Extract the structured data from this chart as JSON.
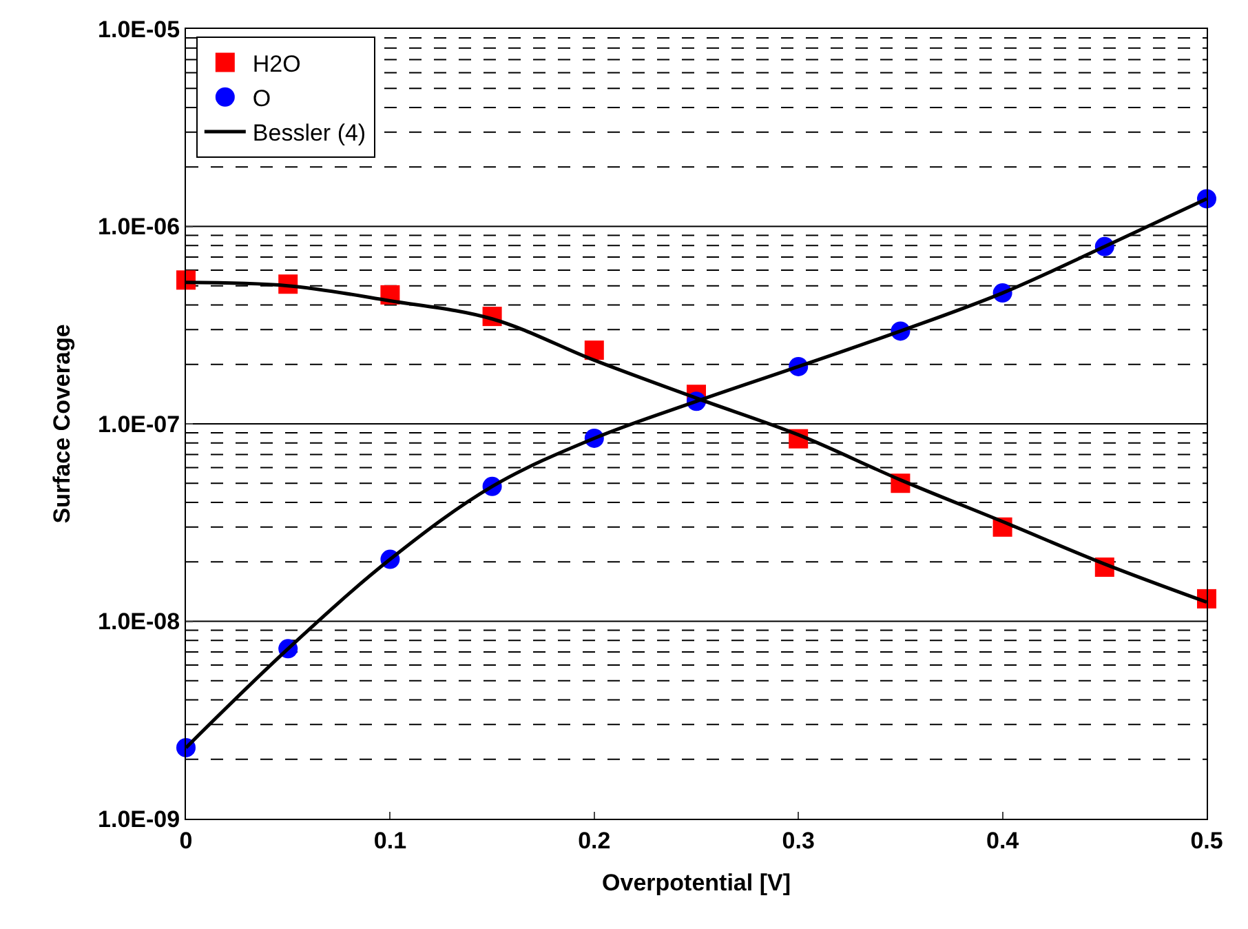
{
  "chart_data": {
    "type": "scatter",
    "xlabel": "Overpotential [V]",
    "ylabel": "Surface Coverage",
    "log": "y",
    "grid": "y",
    "legend": "top left",
    "x": [
      0,
      0.05,
      0.1,
      0.15,
      0.2,
      0.25,
      0.3,
      0.35,
      0.4,
      0.45,
      0.5
    ],
    "xlim": [
      0,
      0.5
    ],
    "xticks": [
      0,
      0.1,
      0.2,
      0.3,
      0.4,
      0.5
    ],
    "ylim": [
      1e-09,
      1e-05
    ],
    "yticks": [
      {
        "value": 1e-09,
        "label": "1.0E-09"
      },
      {
        "value": 2e-09,
        "label": null
      },
      {
        "value": 3e-09,
        "label": null
      },
      {
        "value": 4e-09,
        "label": null
      },
      {
        "value": 5e-09,
        "label": null
      },
      {
        "value": 6e-09,
        "label": null
      },
      {
        "value": 7e-09,
        "label": null
      },
      {
        "value": 8e-09,
        "label": null
      },
      {
        "value": 9e-09,
        "label": null
      },
      {
        "value": 1e-08,
        "label": "1.0E-08"
      },
      {
        "value": 2e-08,
        "label": null
      },
      {
        "value": 3e-08,
        "label": null
      },
      {
        "value": 4e-08,
        "label": null
      },
      {
        "value": 5e-08,
        "label": null
      },
      {
        "value": 6e-08,
        "label": null
      },
      {
        "value": 7e-08,
        "label": null
      },
      {
        "value": 8e-08,
        "label": null
      },
      {
        "value": 9e-08,
        "label": null
      },
      {
        "value": 1e-07,
        "label": "1.0E-07"
      },
      {
        "value": 2e-07,
        "label": null
      },
      {
        "value": 3e-07,
        "label": null
      },
      {
        "value": 4e-07,
        "label": null
      },
      {
        "value": 5e-07,
        "label": null
      },
      {
        "value": 6e-07,
        "label": null
      },
      {
        "value": 7e-07,
        "label": null
      },
      {
        "value": 8e-07,
        "label": null
      },
      {
        "value": 9e-07,
        "label": null
      },
      {
        "value": 1e-06,
        "label": "1.0E-06"
      },
      {
        "value": 2e-06,
        "label": null
      },
      {
        "value": 3e-06,
        "label": null
      },
      {
        "value": 4e-06,
        "label": null
      },
      {
        "value": 5e-06,
        "label": null
      },
      {
        "value": 6e-06,
        "label": null
      },
      {
        "value": 7e-06,
        "label": null
      },
      {
        "value": 8e-06,
        "label": null
      },
      {
        "value": 9e-06,
        "label": null
      },
      {
        "value": 1e-05,
        "label": "1.0E-05"
      }
    ],
    "series": [
      {
        "name": "H2O",
        "marker": "square",
        "color": "#ff0000",
        "values": [
          5.35e-07,
          5.1e-07,
          4.5e-07,
          3.5e-07,
          2.36e-07,
          1.41e-07,
          8.4e-08,
          5e-08,
          3e-08,
          1.88e-08,
          1.3e-08
        ]
      },
      {
        "name": "O",
        "marker": "circle",
        "color": "#0000ff",
        "values": [
          2.29e-09,
          7.26e-09,
          2.06e-08,
          4.82e-08,
          8.45e-08,
          1.3e-07,
          1.95e-07,
          2.95e-07,
          4.6e-07,
          7.9e-07,
          1.38e-06
        ]
      },
      {
        "name": "Bessler (4)",
        "type": "line",
        "marker": "none",
        "line_style": "solid",
        "color": "#000000",
        "values": [
          5.2e-07,
          5e-07,
          4.2e-07,
          3.4e-07,
          2.1e-07,
          1.35e-07,
          8.8e-08,
          5.2e-08,
          3.2e-08,
          1.95e-08,
          1.25e-08
        ]
      },
      {
        "type": "line",
        "marker": "none",
        "line_style": "solid",
        "color": "#000000",
        "values": [
          2.29e-09,
          7.26e-09,
          2.06e-08,
          4.82e-08,
          8.45e-08,
          1.3e-07,
          1.95e-07,
          2.95e-07,
          4.6e-07,
          7.9e-07,
          1.38e-06
        ]
      }
    ]
  }
}
